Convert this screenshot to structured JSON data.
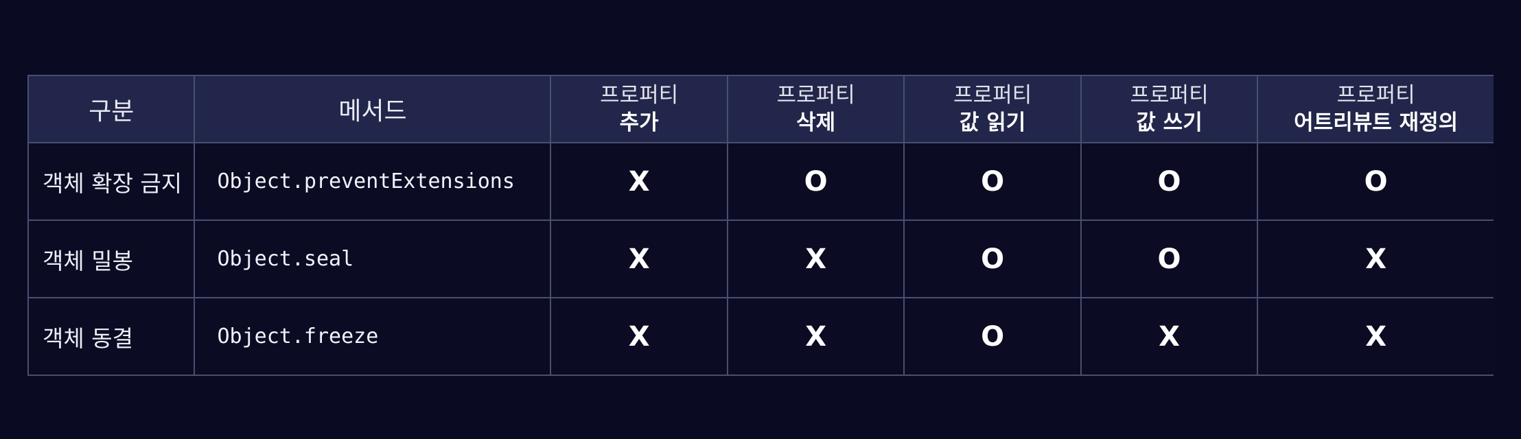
{
  "header": {
    "category": "구분",
    "method": "메서드",
    "columns": [
      {
        "top": "프로퍼티",
        "bottom": "추가"
      },
      {
        "top": "프로퍼티",
        "bottom": "삭제"
      },
      {
        "top": "프로퍼티",
        "bottom": "값 읽기"
      },
      {
        "top": "프로퍼티",
        "bottom": "값 쓰기"
      },
      {
        "top": "프로퍼티",
        "bottom": "어트리뷰트 재정의"
      }
    ]
  },
  "rows": [
    {
      "category": "객체 확장 금지",
      "method": "Object.preventExtensions",
      "marks": [
        "X",
        "O",
        "O",
        "O",
        "O"
      ]
    },
    {
      "category": "객체 밀봉",
      "method": "Object.seal",
      "marks": [
        "X",
        "X",
        "O",
        "O",
        "X"
      ]
    },
    {
      "category": "객체 동결",
      "method": "Object.freeze",
      "marks": [
        "X",
        "X",
        "O",
        "X",
        "X"
      ]
    }
  ]
}
